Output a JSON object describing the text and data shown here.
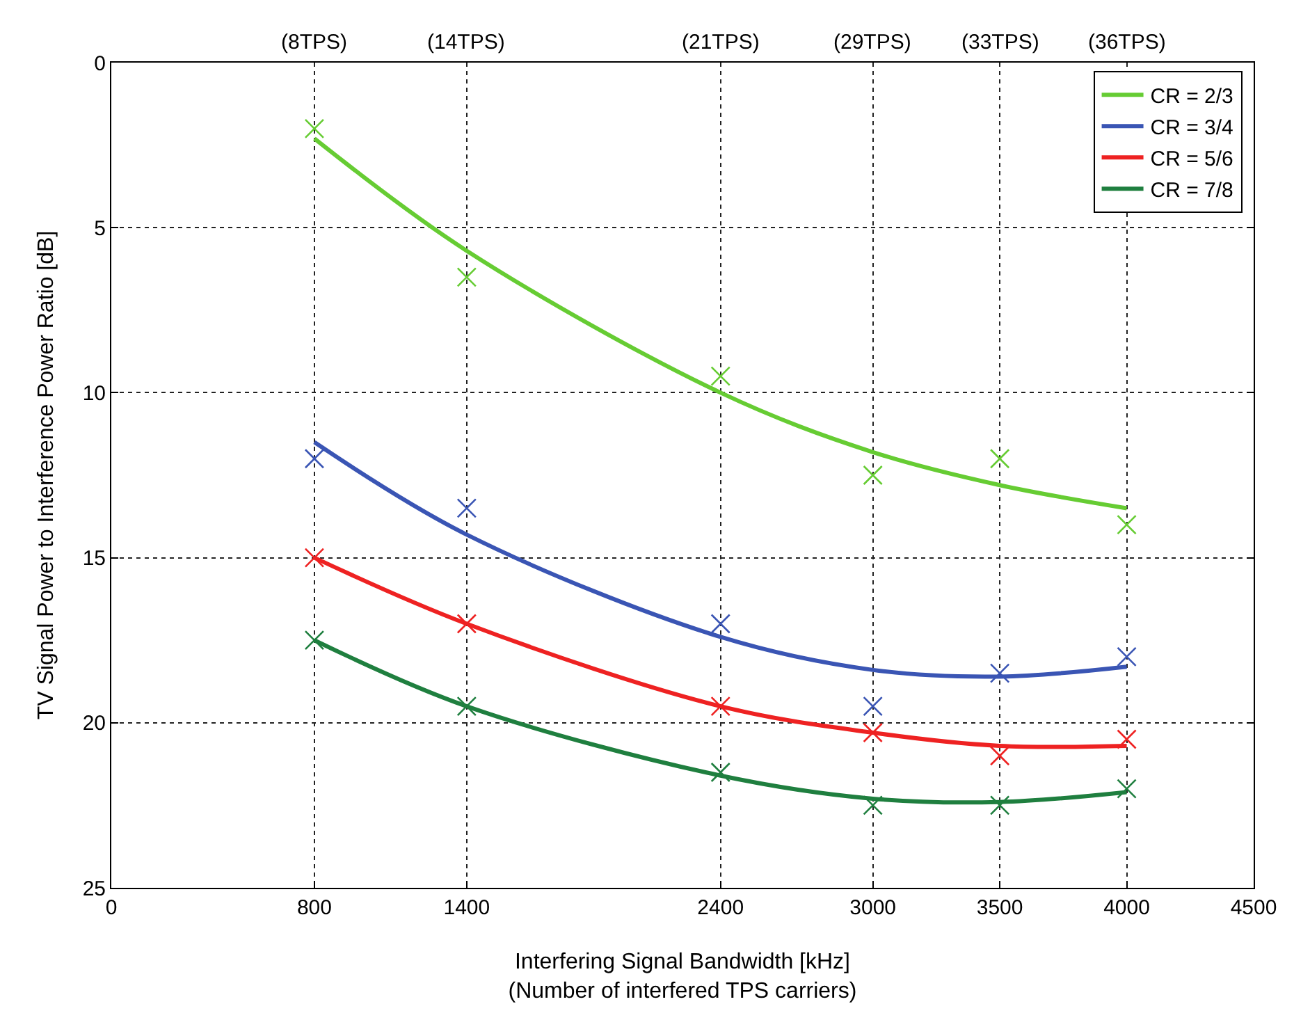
{
  "chart_data": {
    "type": "line",
    "xlabel": "Interfering Signal Bandwidth [kHz]\n(Number of interfered TPS carriers)",
    "ylabel": "TV Signal Power to Interference Power Ratio [dB]",
    "x": [
      800,
      1400,
      2400,
      3000,
      3500,
      4000
    ],
    "xlim": [
      0,
      4500
    ],
    "xticks": [
      0,
      800,
      1400,
      2400,
      3000,
      3500,
      4000,
      4500
    ],
    "annotations": [
      "(8TPS)",
      "(14TPS)",
      "(21TPS)",
      "(29TPS)",
      "(33TPS)",
      "(36TPS)"
    ],
    "ylim": [
      25,
      0
    ],
    "yticks": [
      0,
      5,
      10,
      15,
      20,
      25
    ],
    "grid": true,
    "legend": "top right",
    "series": [
      {
        "name": "CR = 2/3",
        "color": "#66cc33",
        "values": [
          2.3,
          5.7,
          10,
          11.8,
          12.8,
          13.5
        ]
      },
      {
        "name": "CR = 3/4",
        "color": "#3a55b4",
        "values": [
          11.5,
          14.3,
          17.4,
          18.4,
          18.6,
          18.3
        ]
      },
      {
        "name": "CR = 5/6",
        "color": "#ee2222",
        "values": [
          15,
          17,
          19.5,
          20.3,
          20.7,
          20.7
        ]
      },
      {
        "name": "CR = 7/8",
        "color": "#1f7f3f",
        "values": [
          17.5,
          19.5,
          21.6,
          22.3,
          22.4,
          22.1
        ]
      },
      {
        "type": "scatter",
        "marker": "cross",
        "color": "#66cc33",
        "values": [
          2,
          6.5,
          9.5,
          12.5,
          12,
          14
        ]
      },
      {
        "type": "scatter",
        "marker": "cross",
        "color": "#3a55b4",
        "values": [
          12,
          13.5,
          17,
          19.5,
          18.5,
          18
        ]
      },
      {
        "type": "scatter",
        "marker": "cross",
        "color": "#ee2222",
        "values": [
          15,
          17,
          19.5,
          20.3,
          21,
          20.5
        ]
      },
      {
        "type": "scatter",
        "marker": "cross",
        "color": "#1f7f3f",
        "values": [
          17.5,
          19.5,
          21.5,
          22.5,
          22.5,
          22
        ]
      }
    ]
  }
}
